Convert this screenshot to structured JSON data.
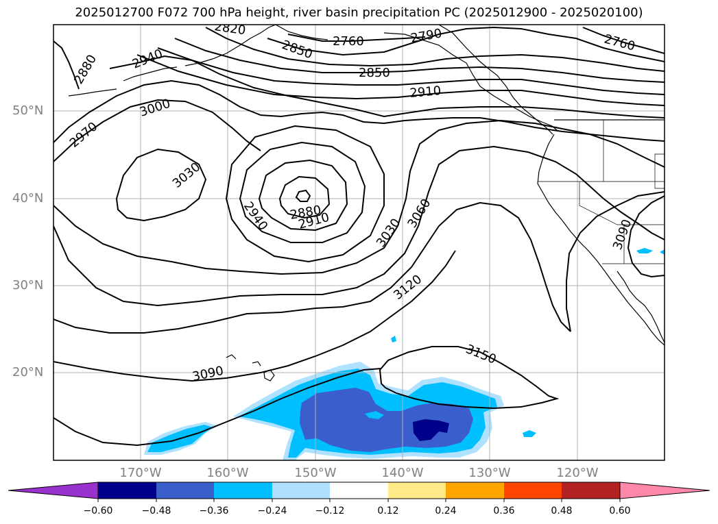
{
  "title": "2025012700 F072 700 hPa height, river basin precipitation PC (2025012900 - 2025020100)",
  "lat_labels": [
    "50°N",
    "40°N",
    "30°N",
    "20°N"
  ],
  "lon_labels": [
    "170°W",
    "160°W",
    "150°W",
    "140°W",
    "130°W",
    "120°W"
  ],
  "contour_labels": [
    "2820",
    "2850",
    "2760",
    "2790",
    "2760",
    "2850",
    "2910",
    "2880",
    "2940",
    "3000",
    "2970",
    "3030",
    "2940",
    "2880",
    "2910",
    "3030",
    "3060",
    "3120",
    "3150",
    "3090",
    "3090"
  ],
  "colorbar": {
    "tick_labels": [
      "−0.60",
      "−0.48",
      "−0.36",
      "−0.24",
      "−0.12",
      "0.12",
      "0.24",
      "0.36",
      "0.48",
      "0.60"
    ],
    "colors": [
      "#9932cc",
      "#00008b",
      "#3a5fcd",
      "#00bfff",
      "#b0e2ff",
      "#ffffff",
      "#ffeb8a",
      "#ffa500",
      "#ff4500",
      "#b22222",
      "#ff88aa"
    ]
  },
  "shading_colors": {
    "light": "#b0e2ff",
    "medium": "#00bfff",
    "dark": "#3a5fcd",
    "darkest": "#00008b"
  }
}
